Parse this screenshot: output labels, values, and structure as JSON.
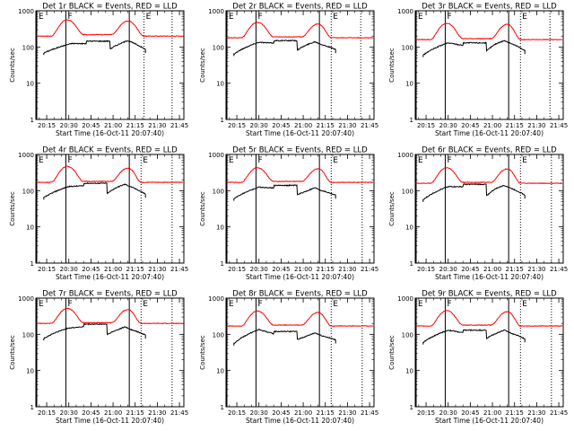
{
  "chart_data": {
    "type": "line",
    "y_scale": "log",
    "ylim": [
      1,
      1000
    ],
    "y_ticks": [
      "1",
      "10",
      "100",
      "1000"
    ],
    "ylabel": "Counts/sec",
    "xlabel": "Start Time (16-Oct-11 20:07:40)",
    "x_range": [
      "20:07:40",
      "21:48:00"
    ],
    "x_ticks": [
      "20:15",
      "20:30",
      "20:45",
      "21:00",
      "21:15",
      "21:30",
      "21:45"
    ],
    "flag_labels": [
      "E",
      "F",
      "E"
    ],
    "colors": {
      "events": "#000000",
      "lld": "#ff0000"
    },
    "series_names": [
      "BLACK = Events",
      "RED = LLD"
    ],
    "panels": [
      {
        "title": "Det 1r  BLACK = Events, RED = LLD",
        "markers": {
          "solid": [
            "20:28",
            "21:11"
          ],
          "dotted": [
            "21:21",
            "21:40"
          ]
        },
        "events": {
          "start": "20:13",
          "end": "21:22",
          "peak1_time": "20:32",
          "peak1": 125,
          "plateau": 145,
          "peak2_time": "21:10",
          "peak2": 150,
          "dip": 80,
          "end_value": 85
        },
        "lld": {
          "base": 200,
          "peak1_time": "20:29",
          "peak1": 560,
          "trough": 220,
          "peak2_time": "21:10",
          "peak2": 520
        }
      },
      {
        "title": "Det 2r  BLACK = Events, RED = LLD",
        "markers": {
          "solid": [
            "20:28",
            "21:11"
          ],
          "dotted": [
            "21:19",
            "21:39"
          ]
        },
        "events": {
          "start": "20:13",
          "end": "21:22",
          "peak1_time": "20:30",
          "peak1": 135,
          "plateau": 150,
          "peak2_time": "21:08",
          "peak2": 140,
          "dip": 75,
          "end_value": 85
        },
        "lld": {
          "base": 180,
          "peak1_time": "20:29",
          "peak1": 480,
          "trough": 190,
          "peak2_time": "21:10",
          "peak2": 430
        }
      },
      {
        "title": "Det 3r  BLACK = Events, RED = LLD",
        "markers": {
          "solid": [
            "20:28",
            "21:11"
          ],
          "dotted": [
            "21:19",
            "21:39"
          ]
        },
        "events": {
          "start": "20:13",
          "end": "21:22",
          "peak1_time": "20:30",
          "peak1": 130,
          "plateau": 130,
          "peak2_time": "21:08",
          "peak2": 150,
          "dip": 70,
          "end_value": 80
        },
        "lld": {
          "base": 160,
          "peak1_time": "20:29",
          "peak1": 450,
          "trough": 170,
          "peak2_time": "21:10",
          "peak2": 420
        }
      },
      {
        "title": "Det 4r  BLACK = Events, RED = LLD",
        "markers": {
          "solid": [
            "20:28",
            "21:11"
          ],
          "dotted": [
            "21:19",
            "21:40"
          ]
        },
        "events": {
          "start": "20:13",
          "end": "21:22",
          "peak1_time": "20:30",
          "peak1": 130,
          "plateau": 160,
          "peak2_time": "21:08",
          "peak2": 150,
          "dip": 75,
          "end_value": 80
        },
        "lld": {
          "base": 170,
          "peak1_time": "20:29",
          "peak1": 470,
          "trough": 180,
          "peak2_time": "21:10",
          "peak2": 420
        }
      },
      {
        "title": "Det 5r  BLACK = Events, RED = LLD",
        "markers": {
          "solid": [
            "20:28",
            "21:11"
          ],
          "dotted": [
            "21:19",
            "21:40"
          ]
        },
        "events": {
          "start": "20:13",
          "end": "21:22",
          "peak1_time": "20:30",
          "peak1": 125,
          "plateau": 140,
          "peak2_time": "21:08",
          "peak2": 120,
          "dip": 70,
          "end_value": 75
        },
        "lld": {
          "base": 170,
          "peak1_time": "20:29",
          "peak1": 430,
          "trough": 180,
          "peak2_time": "21:10",
          "peak2": 400
        }
      },
      {
        "title": "Det 6r  BLACK = Events, RED = LLD",
        "markers": {
          "solid": [
            "20:28",
            "21:11"
          ],
          "dotted": [
            "21:19",
            "21:40"
          ]
        },
        "events": {
          "start": "20:13",
          "end": "21:22",
          "peak1_time": "20:30",
          "peak1": 130,
          "plateau": 150,
          "peak2_time": "21:08",
          "peak2": 140,
          "dip": 65,
          "end_value": 75
        },
        "lld": {
          "base": 160,
          "peak1_time": "20:29",
          "peak1": 430,
          "trough": 170,
          "peak2_time": "21:10",
          "peak2": 400
        }
      },
      {
        "title": "Det 7r  BLACK = Events, RED = LLD",
        "markers": {
          "solid": [
            "20:28",
            "21:11"
          ],
          "dotted": [
            "21:19",
            "21:40"
          ]
        },
        "events": {
          "start": "20:13",
          "end": "21:22",
          "peak1_time": "20:30",
          "peak1": 150,
          "plateau": 190,
          "peak2_time": "21:08",
          "peak2": 160,
          "dip": 90,
          "end_value": 95
        },
        "lld": {
          "base": 200,
          "peak1_time": "20:29",
          "peak1": 520,
          "trough": 210,
          "peak2_time": "21:10",
          "peak2": 480
        }
      },
      {
        "title": "Det 8r  BLACK = Events, RED = LLD",
        "markers": {
          "solid": [
            "20:28",
            "21:11"
          ],
          "dotted": [
            "21:19",
            "21:40"
          ]
        },
        "events": {
          "start": "20:13",
          "end": "21:22",
          "peak1_time": "20:30",
          "peak1": 135,
          "plateau": 120,
          "peak2_time": "21:08",
          "peak2": 110,
          "dip": 65,
          "end_value": 70
        },
        "lld": {
          "base": 170,
          "peak1_time": "20:29",
          "peak1": 440,
          "trough": 180,
          "peak2_time": "21:10",
          "peak2": 400
        }
      },
      {
        "title": "Det 9r  BLACK = Events, RED = LLD",
        "markers": {
          "solid": [
            "20:28",
            "21:11"
          ],
          "dotted": [
            "21:19",
            "21:40"
          ]
        },
        "events": {
          "start": "20:13",
          "end": "21:22",
          "peak1_time": "20:30",
          "peak1": 130,
          "plateau": 130,
          "peak2_time": "21:08",
          "peak2": 130,
          "dip": 70,
          "end_value": 75
        },
        "lld": {
          "base": 170,
          "peak1_time": "20:29",
          "peak1": 450,
          "trough": 180,
          "peak2_time": "21:10",
          "peak2": 420
        }
      }
    ]
  }
}
